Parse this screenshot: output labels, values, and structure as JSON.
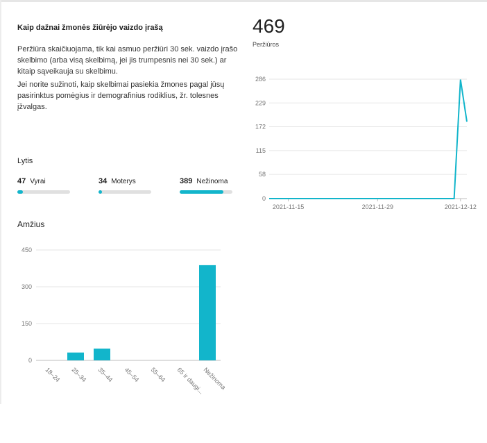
{
  "card": {
    "title": "Kaip dažnai žmonės žiūrėjo vaizdo įrašą",
    "paragraph1_line1": "Peržiūra skaičiuojama, tik kai asmuo peržiūri 30 sek. vaizdo įrašo",
    "paragraph1_line2": "skelbimo (arba visą skelbimą, jei jis trumpesnis nei 30 sek.) ar",
    "paragraph1_line3": "kitaip sąveikauja su skelbimu.",
    "paragraph2_line1": "Jei norite sužinoti, kaip skelbimai pasiekia žmones pagal jūsų",
    "paragraph2_line2": "pasirinktus pomėgius ir demografinius rodiklius, žr. tolesnes",
    "paragraph2_line3": "įžvalgas."
  },
  "gender": {
    "label": "Lytis",
    "items": [
      {
        "value": "47",
        "label": "Vyrai",
        "fraction": 0.1
      },
      {
        "value": "34",
        "label": "Moterys",
        "fraction": 0.07
      },
      {
        "value": "389",
        "label": "Nežinoma",
        "fraction": 0.83
      }
    ]
  },
  "age": {
    "label": "Amžius"
  },
  "views": {
    "total": "469",
    "label": "Peržiūros"
  },
  "colors": {
    "accent": "#12b5cb",
    "grid": "#e6e6e6",
    "axis_text": "#757575",
    "bar_track": "#e0e0e0"
  },
  "chart_data": [
    {
      "type": "bar",
      "title": "Amžius",
      "categories": [
        "18–24",
        "25–34",
        "35–44",
        "45–54",
        "55–64",
        "65 ir daugi...",
        "Nežinoma"
      ],
      "values": [
        0,
        32,
        48,
        0,
        0,
        0,
        388
      ],
      "yticks": [
        "0",
        "150",
        "300",
        "450"
      ],
      "ylim": [
        0,
        450
      ],
      "grid": true
    },
    {
      "type": "line",
      "title": "",
      "series": [
        {
          "points": [
            [
              "2021-11-12",
              0
            ],
            [
              "2021-11-15",
              0
            ],
            [
              "2021-11-20",
              0
            ],
            [
              "2021-11-25",
              0
            ],
            [
              "2021-11-29",
              0
            ],
            [
              "2021-12-05",
              0
            ],
            [
              "2021-12-10",
              0
            ],
            [
              "2021-12-11",
              0
            ],
            [
              "2021-12-12",
              285
            ],
            [
              "2021-12-13",
              184
            ]
          ]
        }
      ],
      "xticks": [
        "2021-11-15",
        "2021-11-29",
        "2021-12-12"
      ],
      "yticks": [
        "0",
        "58",
        "115",
        "172",
        "229",
        "286"
      ],
      "ylim": [
        0,
        286
      ],
      "grid": true
    }
  ]
}
